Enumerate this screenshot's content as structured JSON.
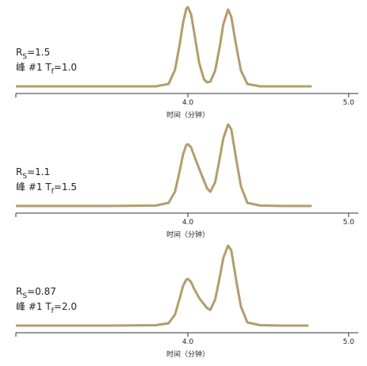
{
  "chart_data": [
    {
      "type": "line",
      "color": "#b39d6b",
      "annotations": [
        [
          "R",
          "S",
          "=1.5"
        ],
        [
          "峰 #1 T",
          "f",
          "=1.0"
        ]
      ],
      "x_label": "时间（分钟）",
      "xlim": [
        2.93,
        5.06
      ],
      "xticks": [
        {
          "value": 4,
          "label": "4.0"
        },
        {
          "value": 5,
          "label": "5.0"
        }
      ],
      "ylim": [
        0,
        105
      ],
      "x": [
        2.93,
        3.5,
        3.8,
        3.88,
        3.92,
        3.95,
        3.97,
        3.99,
        4.0,
        4.02,
        4.04,
        4.07,
        4.1,
        4.12,
        4.14,
        4.17,
        4.2,
        4.22,
        4.25,
        4.27,
        4.3,
        4.33,
        4.37,
        4.45,
        4.6,
        4.77
      ],
      "values": [
        0,
        0,
        0,
        3,
        21,
        54,
        80,
        98,
        100,
        91,
        67,
        30,
        9,
        5,
        6,
        20,
        52,
        78,
        97,
        88,
        52,
        20,
        3,
        0,
        0,
        0
      ]
    },
    {
      "type": "line",
      "color": "#b39d6b",
      "annotations": [
        [
          "R",
          "S",
          "=1.1"
        ],
        [
          "峰 #1 T",
          "f",
          "=1.5"
        ]
      ],
      "x_label": "时间（分钟）",
      "xlim": [
        2.93,
        5.06
      ],
      "xticks": [
        {
          "value": 4,
          "label": "4.0"
        },
        {
          "value": 5,
          "label": "5.0"
        }
      ],
      "ylim": [
        0,
        105
      ],
      "x": [
        2.93,
        3.5,
        3.8,
        3.88,
        3.92,
        3.95,
        3.97,
        3.99,
        4.0,
        4.02,
        4.04,
        4.07,
        4.1,
        4.12,
        4.14,
        4.17,
        4.2,
        4.22,
        4.25,
        4.27,
        4.3,
        4.33,
        4.37,
        4.45,
        4.6,
        4.77
      ],
      "values": [
        0,
        0,
        0.5,
        4,
        18,
        45,
        65,
        77,
        78,
        74,
        63,
        47,
        32,
        22,
        18,
        30,
        62,
        85,
        103,
        97,
        60,
        25,
        4,
        0.5,
        0,
        0
      ]
    },
    {
      "type": "line",
      "color": "#b39d6b",
      "annotations": [
        [
          "R",
          "S",
          "=0.87"
        ],
        [
          "峰 #1 T",
          "f",
          "=2.0"
        ]
      ],
      "x_label": "时间（分钟）",
      "xlim": [
        2.93,
        5.06
      ],
      "xticks": [
        {
          "value": 4,
          "label": "4.0"
        },
        {
          "value": 5,
          "label": "5.0"
        }
      ],
      "ylim": [
        0,
        105
      ],
      "x": [
        2.93,
        3.5,
        3.8,
        3.88,
        3.92,
        3.95,
        3.97,
        3.99,
        4.0,
        4.02,
        4.04,
        4.07,
        4.1,
        4.12,
        4.14,
        4.17,
        4.2,
        4.22,
        4.25,
        4.27,
        4.3,
        4.33,
        4.37,
        4.45,
        4.6,
        4.75
      ],
      "values": [
        0,
        0,
        0.5,
        3,
        14,
        35,
        50,
        58,
        59,
        55,
        46,
        35,
        27,
        22,
        20,
        33,
        63,
        85,
        101,
        95,
        58,
        24,
        4,
        0.5,
        0,
        0
      ]
    }
  ]
}
